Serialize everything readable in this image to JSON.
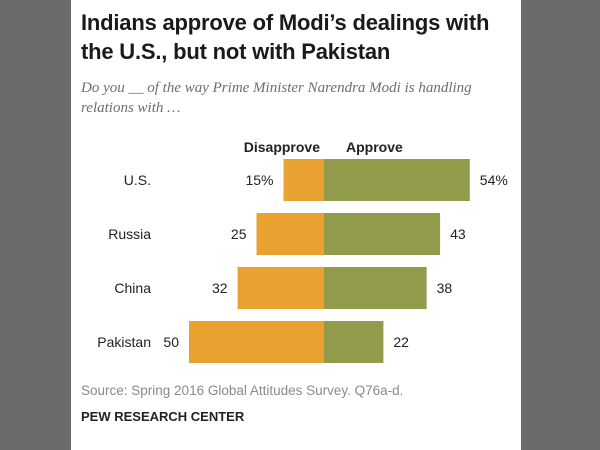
{
  "title": "Indians approve of Modi’s dealings with the U.S., but not with Pakistan",
  "subtitle": "Do you __ of the way Prime Minister Narendra Modi is handling relations with …",
  "source": "Source: Spring 2016 Global Attitudes Survey. Q76a-d.",
  "organization": "PEW RESEARCH CENTER",
  "colors": {
    "disapprove": "#e9a130",
    "approve": "#929b4a"
  },
  "chart_data": {
    "type": "bar",
    "orientation": "diverging-horizontal",
    "categories": [
      "U.S.",
      "Russia",
      "China",
      "Pakistan"
    ],
    "series": [
      {
        "name": "Disapprove",
        "values": [
          15,
          25,
          32,
          50
        ],
        "labels": [
          "15%",
          "25",
          "32",
          "50"
        ]
      },
      {
        "name": "Approve",
        "values": [
          54,
          43,
          38,
          22
        ],
        "labels": [
          "54%",
          "43",
          "38",
          "22"
        ]
      }
    ],
    "unit": "%"
  }
}
